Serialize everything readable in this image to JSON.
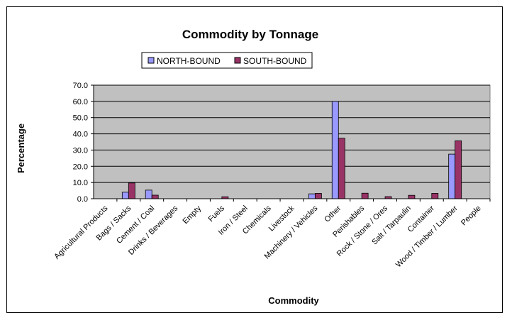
{
  "chart_data": {
    "type": "bar",
    "title": "Commodity by Tonnage",
    "xlabel": "Commodity",
    "ylabel": "Percentage",
    "ylim": [
      0,
      70
    ],
    "yticks": [
      "0.0",
      "10.0",
      "20.0",
      "30.0",
      "40.0",
      "50.0",
      "60.0",
      "70.0"
    ],
    "grid": true,
    "legend_position": "top",
    "categories": [
      "Agricultural Products",
      "Bags / Sacks",
      "Cement / Coal",
      "Drinks / Beverages",
      "Empty",
      "Fuels",
      "Iron / Steel",
      "Chemicals",
      "Livestock",
      "Machinery / Vehicles",
      "Other",
      "Perishables",
      "Rock / Stone / Ores",
      "Salt / Tarpaulin",
      "Container",
      "Wood / Timber / Lumber",
      "People"
    ],
    "series": [
      {
        "name": "NORTH-BOUND",
        "color": "#9999ff",
        "values": [
          0,
          4.0,
          5.3,
          0,
          0,
          0,
          0,
          0,
          0,
          3.0,
          60.0,
          0,
          0,
          0,
          0,
          27.5,
          0
        ]
      },
      {
        "name": "SOUTH-BOUND",
        "color": "#993366",
        "values": [
          0,
          9.7,
          2.2,
          0,
          0,
          1.2,
          0,
          0,
          0,
          3.3,
          37.3,
          3.4,
          1.3,
          2.1,
          3.3,
          35.7,
          0
        ]
      }
    ],
    "plot_area_color": "#c0c0c0"
  }
}
